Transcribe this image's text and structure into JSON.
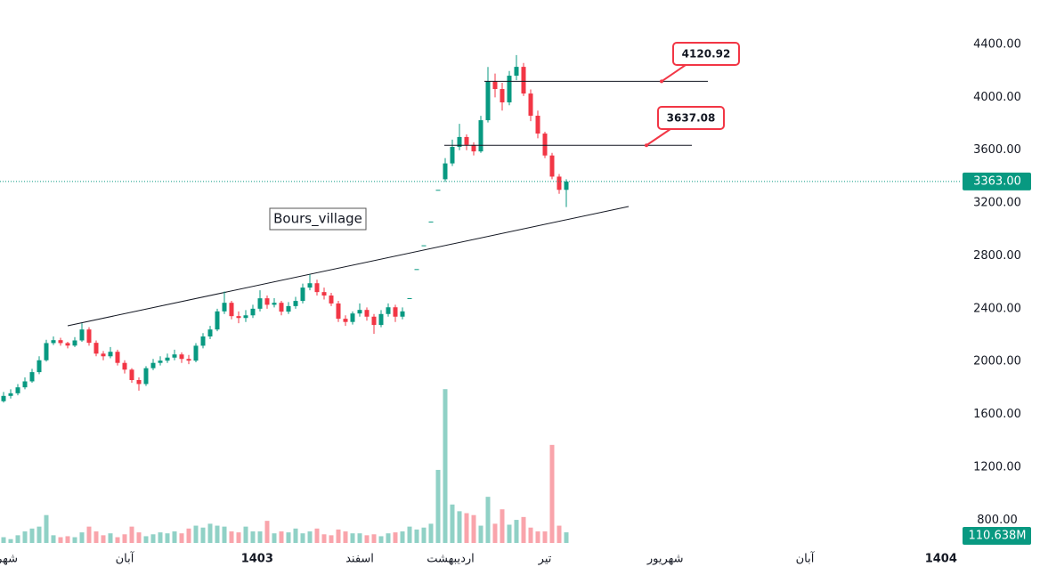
{
  "chart_data": {
    "type": "candlestick",
    "watermark": "Bours_village",
    "xticks": [
      {
        "value": 0.5,
        "label": "شهر"
      },
      {
        "value": 17,
        "label": "آبان"
      },
      {
        "value": 35.6,
        "label": "1403"
      },
      {
        "value": 50,
        "label": "اسفند"
      },
      {
        "value": 62.75,
        "label": "اردیبهشت"
      },
      {
        "value": 76,
        "label": "تیر"
      },
      {
        "value": 92.9,
        "label": "شهریور"
      },
      {
        "value": 112.5,
        "label": "آبان"
      },
      {
        "value": 131.6,
        "label": "1404"
      }
    ],
    "ylim": [
      600,
      4737
    ],
    "yticks": [
      {
        "value": 800,
        "label": "800.00"
      },
      {
        "value": 1200,
        "label": "1200.00"
      },
      {
        "value": 1600,
        "label": "1600.00"
      },
      {
        "value": 2000,
        "label": "2000.00"
      },
      {
        "value": 2400,
        "label": "2400.00"
      },
      {
        "value": 2800,
        "label": "2800.00"
      },
      {
        "value": 3200,
        "label": "3200.00"
      },
      {
        "value": 3600,
        "label": "3600.00"
      },
      {
        "value": 4000,
        "label": "4000.00"
      },
      {
        "value": 4400,
        "label": "4400.00"
      }
    ],
    "up_color": "#089981",
    "down_color": "#f23645",
    "open": [
      1700,
      1740,
      1760,
      1805,
      1850,
      1920,
      2010,
      2140,
      2162,
      2140,
      2121,
      2160,
      2243,
      2142,
      2060,
      2040,
      2074,
      1990,
      1939,
      1860,
      1830,
      1950,
      1990,
      2007,
      2030,
      2054,
      2020,
      2007,
      2120,
      2190,
      2243,
      2380,
      2445,
      2344,
      2330,
      2350,
      2400,
      2479,
      2430,
      2445,
      2378,
      2420,
      2459,
      2560,
      2593,
      2526,
      2500,
      2440,
      2324,
      2300,
      2364,
      2391,
      2340,
      2277,
      2360,
      2411,
      2340,
      2480,
      2700,
      2880,
      3060,
      3300,
      3380,
      3500,
      3625,
      3700,
      3640,
      3591,
      3827,
      4120,
      4063,
      3962,
      4164,
      4231,
      4029,
      3861,
      3726,
      3560,
      3400,
      3300
    ],
    "high": [
      1770,
      1790,
      1830,
      1880,
      1945,
      2040,
      2165,
      2190,
      2180,
      2150,
      2185,
      2290,
      2260,
      2160,
      2080,
      2110,
      2090,
      2010,
      1950,
      1880,
      1965,
      2020,
      2040,
      2060,
      2090,
      2070,
      2050,
      2140,
      2215,
      2270,
      2400,
      2530,
      2460,
      2380,
      2390,
      2430,
      2540,
      2500,
      2480,
      2460,
      2450,
      2490,
      2590,
      2660,
      2620,
      2560,
      2520,
      2460,
      2350,
      2380,
      2440,
      2410,
      2360,
      2390,
      2440,
      2430,
      2410,
      2480,
      2700,
      2880,
      3060,
      3300,
      3540,
      3680,
      3800,
      3720,
      3660,
      3860,
      4230,
      4180,
      4110,
      4200,
      4320,
      4260,
      4060,
      3900,
      3740,
      3580,
      3420,
      3380
    ],
    "low": [
      1690,
      1720,
      1745,
      1790,
      1840,
      1905,
      2000,
      2125,
      2120,
      2100,
      2110,
      2150,
      2120,
      2040,
      2010,
      2025,
      1970,
      1910,
      1840,
      1780,
      1815,
      1935,
      1970,
      1990,
      2010,
      1990,
      1980,
      1995,
      2100,
      2170,
      2230,
      2360,
      2320,
      2290,
      2300,
      2330,
      2380,
      2400,
      2410,
      2350,
      2360,
      2400,
      2440,
      2540,
      2500,
      2470,
      2420,
      2300,
      2270,
      2280,
      2340,
      2310,
      2210,
      2260,
      2340,
      2300,
      2320,
      2480,
      2700,
      2880,
      3060,
      3300,
      3360,
      3480,
      3600,
      3600,
      3560,
      3580,
      3810,
      4000,
      3900,
      3940,
      4130,
      4010,
      3820,
      3690,
      3540,
      3380,
      3270,
      3170
    ],
    "close": [
      1740,
      1760,
      1805,
      1850,
      1920,
      2010,
      2140,
      2162,
      2140,
      2121,
      2160,
      2243,
      2142,
      2060,
      2040,
      2074,
      1990,
      1939,
      1860,
      1830,
      1950,
      1990,
      2007,
      2030,
      2054,
      2020,
      2007,
      2120,
      2190,
      2243,
      2380,
      2445,
      2344,
      2330,
      2350,
      2400,
      2479,
      2430,
      2445,
      2378,
      2420,
      2459,
      2560,
      2593,
      2526,
      2500,
      2440,
      2324,
      2300,
      2364,
      2391,
      2340,
      2277,
      2360,
      2411,
      2340,
      2380,
      2480,
      2700,
      2880,
      3060,
      3300,
      3500,
      3625,
      3700,
      3640,
      3591,
      3827,
      4120,
      4063,
      3962,
      4164,
      4231,
      4029,
      3861,
      3726,
      3560,
      3400,
      3300,
      3363
    ],
    "volume": {
      "values": [
        60,
        40,
        80,
        120,
        150,
        170,
        290,
        80,
        60,
        70,
        60,
        110,
        170,
        120,
        80,
        100,
        60,
        90,
        170,
        110,
        70,
        90,
        110,
        100,
        120,
        100,
        150,
        180,
        160,
        200,
        180,
        170,
        120,
        110,
        170,
        120,
        120,
        230,
        100,
        120,
        110,
        150,
        100,
        120,
        150,
        90,
        80,
        140,
        120,
        100,
        100,
        80,
        90,
        70,
        100,
        110,
        120,
        170,
        140,
        160,
        200,
        760,
        1600,
        400,
        330,
        310,
        290,
        180,
        480,
        200,
        350,
        190,
        240,
        270,
        160,
        120,
        120,
        1020,
        180,
        110.638
      ],
      "last_label": "110.638M"
    },
    "last_price": {
      "value": 3363,
      "label": "3363.00"
    },
    "annotations": [
      {
        "value": 4120.92
      },
      {
        "value": 3637.08
      }
    ]
  }
}
